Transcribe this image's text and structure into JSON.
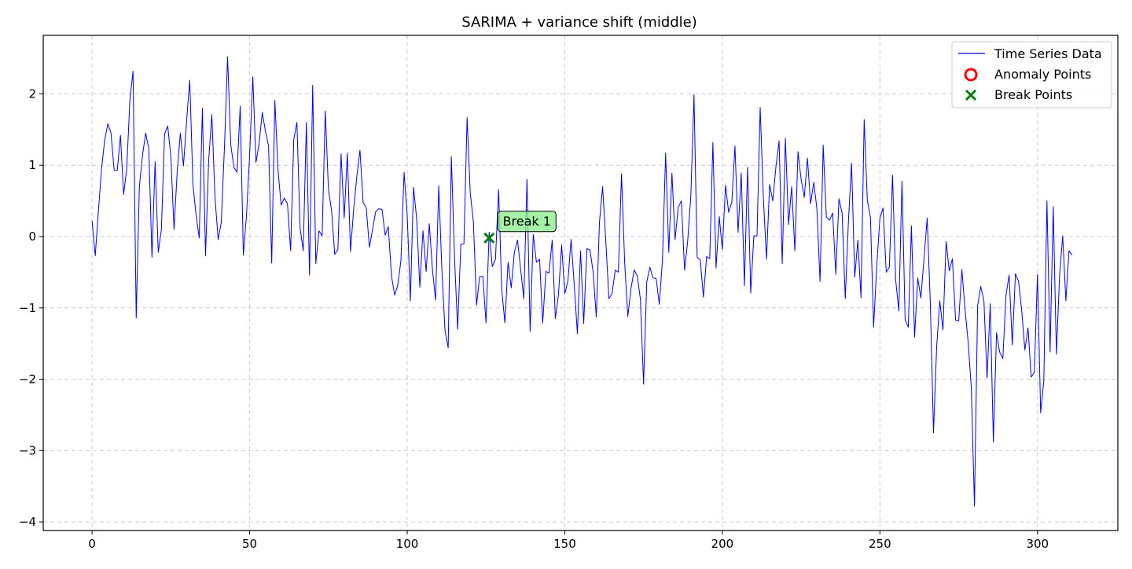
{
  "chart_data": {
    "type": "line",
    "title": "SARIMA + variance shift (middle)",
    "xlabel": "",
    "ylabel": "",
    "xlim": [
      -15.5,
      325.5
    ],
    "ylim": [
      -4.12,
      2.82
    ],
    "xticks": [
      0,
      50,
      100,
      150,
      200,
      250,
      300
    ],
    "yticks": [
      -4,
      -3,
      -2,
      -1,
      0,
      1,
      2
    ],
    "xtick_labels": [
      "0",
      "50",
      "100",
      "150",
      "200",
      "250",
      "300"
    ],
    "ytick_labels": [
      "−4",
      "−3",
      "−2",
      "−1",
      "0",
      "1",
      "2"
    ],
    "grid": true,
    "legend_position": "top-right",
    "legend": [
      {
        "label": "Time Series Data",
        "kind": "line",
        "color": "#0000ff"
      },
      {
        "label": "Anomaly Points",
        "kind": "circle",
        "color": "#ff0000"
      },
      {
        "label": "Break Points",
        "kind": "x",
        "color": "#008000"
      }
    ],
    "series": [
      {
        "name": "Time Series Data",
        "color": "#0000ff",
        "x_start": 0,
        "x_step": 1,
        "values": [
          0.22,
          -0.27,
          0.35,
          0.95,
          1.35,
          1.58,
          1.45,
          0.93,
          0.93,
          1.42,
          0.59,
          0.95,
          1.92,
          2.32,
          -1.14,
          0.7,
          1.14,
          1.45,
          1.23,
          -0.29,
          1.05,
          -0.22,
          0.1,
          1.44,
          1.55,
          1.12,
          0.1,
          0.9,
          1.45,
          0.99,
          1.63,
          2.19,
          0.73,
          0.3,
          -0.02,
          1.8,
          -0.27,
          1.07,
          1.71,
          0.55,
          -0.04,
          0.2,
          1.25,
          2.52,
          1.29,
          0.97,
          0.9,
          1.83,
          -0.26,
          0.3,
          1.15,
          2.24,
          1.04,
          1.3,
          1.74,
          1.48,
          1.27,
          -0.37,
          1.91,
          0.93,
          0.44,
          0.54,
          0.46,
          -0.2,
          1.36,
          1.6,
          0.12,
          -0.2,
          1.6,
          -0.54,
          2.12,
          -0.38,
          0.08,
          0.01,
          1.76,
          0.66,
          0.36,
          -0.25,
          -0.18,
          1.16,
          0.26,
          1.17,
          -0.21,
          0.38,
          0.84,
          1.21,
          0.48,
          0.4,
          -0.15,
          0.1,
          0.35,
          0.39,
          0.38,
          0.02,
          0.14,
          -0.55,
          -0.82,
          -0.68,
          -0.34,
          0.9,
          0.3,
          -0.9,
          0.69,
          0.25,
          -0.71,
          0.08,
          -0.49,
          0.18,
          -0.46,
          -0.89,
          0.71,
          -0.47,
          -1.32,
          -1.56,
          1.12,
          -0.28,
          -1.3,
          -0.11,
          -0.1,
          1.67,
          0.61,
          0.21,
          -0.96,
          -0.56,
          -0.56,
          -1.21,
          0.06,
          -0.42,
          -0.32,
          0.66,
          -0.75,
          -1.21,
          -0.36,
          -0.72,
          -0.22,
          -0.05,
          -0.46,
          -0.87,
          0.8,
          -1.33,
          0.03,
          -0.36,
          -0.32,
          -1.21,
          -0.49,
          -0.51,
          -0.05,
          -1.15,
          -0.81,
          -0.12,
          -0.8,
          -0.62,
          -0.04,
          -0.68,
          -1.36,
          -0.2,
          -1.22,
          -0.17,
          -0.19,
          -0.5,
          -1.13,
          0.2,
          0.7,
          -0.05,
          -0.87,
          -0.8,
          -0.47,
          -0.5,
          0.88,
          -0.36,
          -1.12,
          -0.73,
          -0.47,
          -0.55,
          -0.88,
          -2.07,
          -0.64,
          -0.43,
          -0.58,
          -0.59,
          -0.95,
          -0.32,
          1.17,
          -0.22,
          0.89,
          -0.04,
          0.41,
          0.5,
          -0.47,
          -0.06,
          0.57,
          1.99,
          -0.29,
          -0.33,
          -0.85,
          -0.28,
          -0.31,
          1.32,
          -0.44,
          0.28,
          -0.18,
          0.72,
          0.34,
          0.48,
          1.27,
          0.06,
          0.89,
          -0.69,
          0.97,
          -0.79,
          0.01,
          0.01,
          1.81,
          0.56,
          -0.32,
          0.73,
          0.5,
          0.98,
          1.34,
          -0.38,
          1.38,
          0.17,
          0.7,
          -0.2,
          1.19,
          0.8,
          0.55,
          1.1,
          0.46,
          0.76,
          0.39,
          -0.63,
          1.28,
          0.27,
          0.23,
          0.33,
          -0.53,
          0.53,
          0.33,
          -0.87,
          0.21,
          1.03,
          -0.57,
          -0.05,
          -0.86,
          1.64,
          0.51,
          0.26,
          -1.27,
          -0.4,
          0.26,
          0.4,
          -0.5,
          -0.43,
          0.86,
          -0.61,
          -1.04,
          0.78,
          -1.17,
          -1.27,
          0.15,
          -1.41,
          -0.58,
          -0.86,
          -0.3,
          0.26,
          -0.95,
          -2.75,
          -1.55,
          -0.9,
          -1.31,
          -0.07,
          -0.48,
          -0.31,
          -1.17,
          -1.18,
          -0.46,
          -1.02,
          -1.48,
          -2.12,
          -3.78,
          -0.97,
          -0.7,
          -0.9,
          -1.98,
          -0.94,
          -2.88,
          -1.35,
          -1.62,
          -1.71,
          -0.82,
          -0.54,
          -1.52,
          -0.52,
          -0.63,
          -1.04,
          -1.59,
          -1.28,
          -1.97,
          -1.9,
          -0.53,
          -2.47,
          -2.03,
          0.5,
          -1.62,
          0.42,
          -1.65,
          -0.55,
          0.01,
          -0.9,
          -0.2,
          -0.26
        ]
      }
    ],
    "anomaly_points": [],
    "break_points": [
      {
        "x": 126,
        "y": -0.02,
        "label": "Break 1"
      }
    ]
  }
}
